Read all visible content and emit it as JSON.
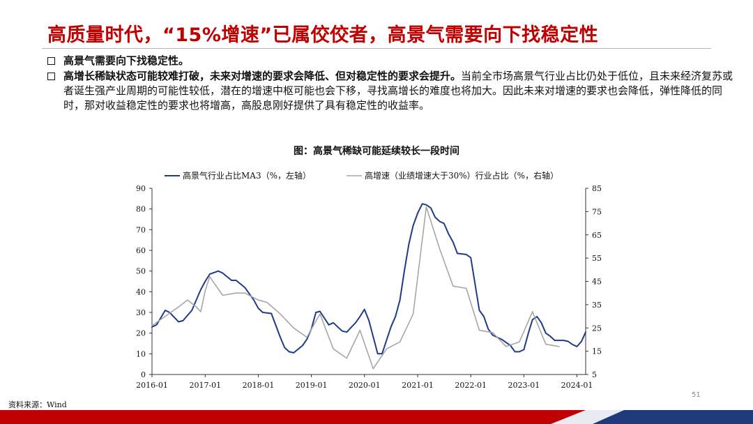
{
  "page": {
    "title": "高质量时代，“15%增速”已属佼佼者，高景气需要向下找稳定性",
    "page_number": "51",
    "source": "资料来源：Wind",
    "figure_title": "图：高景气稀缺可能延续较长一段时间",
    "colors": {
      "title": "#c00000",
      "band_red": "#c00000",
      "band_blue": "#1f3a7a"
    }
  },
  "bullets": [
    {
      "bold": "高景气需要向下找稳定性。",
      "text": ""
    },
    {
      "bold": "高增长稀缺状态可能较难打破，未来对增速的要求会降低、但对稳定性的要求会提升。",
      "text": "当前全市场高景气行业占比仍处于低位，且未来经济复苏或者诞生强产业周期的可能性较低，潜在的增速中枢可能也会下移，寻找高增长的难度也将加大。因此未来对增速的要求也会降低，弹性降低的同时，那对收益稳定性的要求也将增高，高股息刚好提供了具有稳定性的收益率。"
    }
  ],
  "chart_data": {
    "type": "line",
    "title": "图：高景气稀缺可能延续较长一段时间",
    "x_ticks": [
      "2016-01",
      "2017-01",
      "2018-01",
      "2019-01",
      "2020-01",
      "2021-01",
      "2022-01",
      "2023-01",
      "2024-01"
    ],
    "y_left": {
      "range": [
        0,
        90
      ],
      "ticks": [
        0,
        10,
        20,
        30,
        40,
        50,
        60,
        70,
        80,
        90
      ]
    },
    "y_right": {
      "range": [
        5,
        85
      ],
      "ticks": [
        5,
        15,
        25,
        35,
        45,
        55,
        65,
        75,
        85
      ]
    },
    "legend_position": "top",
    "series": [
      {
        "name": "高景气行业占比MA3（%，左轴）",
        "axis": "left",
        "color": "#1f3a8a",
        "points": [
          [
            "2016-01",
            23
          ],
          [
            "2016-02",
            24
          ],
          [
            "2016-04",
            31
          ],
          [
            "2016-05",
            30
          ],
          [
            "2016-07",
            25.5
          ],
          [
            "2016-08",
            26
          ],
          [
            "2016-10",
            31
          ],
          [
            "2016-12",
            41
          ],
          [
            "2017-01",
            45
          ],
          [
            "2017-02",
            48.5
          ],
          [
            "2017-04",
            50
          ],
          [
            "2017-05",
            49
          ],
          [
            "2017-07",
            45.5
          ],
          [
            "2017-08",
            45.5
          ],
          [
            "2017-10",
            42
          ],
          [
            "2017-12",
            36
          ],
          [
            "2018-01",
            32
          ],
          [
            "2018-02",
            30
          ],
          [
            "2018-04",
            29.5
          ],
          [
            "2018-06",
            18
          ],
          [
            "2018-07",
            13
          ],
          [
            "2018-08",
            11
          ],
          [
            "2018-09",
            10.5
          ],
          [
            "2018-11",
            14
          ],
          [
            "2018-12",
            17
          ],
          [
            "2019-01",
            22
          ],
          [
            "2019-02",
            30
          ],
          [
            "2019-03",
            30.5
          ],
          [
            "2019-05",
            24
          ],
          [
            "2019-06",
            25
          ],
          [
            "2019-07",
            23
          ],
          [
            "2019-08",
            21
          ],
          [
            "2019-09",
            20.5
          ],
          [
            "2019-11",
            25
          ],
          [
            "2019-12",
            28
          ],
          [
            "2020-01",
            31.5
          ],
          [
            "2020-02",
            26
          ],
          [
            "2020-04",
            10
          ],
          [
            "2020-05",
            10
          ],
          [
            "2020-07",
            23
          ],
          [
            "2020-08",
            28
          ],
          [
            "2020-09",
            36
          ],
          [
            "2020-10",
            50
          ],
          [
            "2020-11",
            63
          ],
          [
            "2020-12",
            72
          ],
          [
            "2021-01",
            78
          ],
          [
            "2021-02",
            82.5
          ],
          [
            "2021-03",
            82
          ],
          [
            "2021-04",
            80.5
          ],
          [
            "2021-05",
            76
          ],
          [
            "2021-06",
            74
          ],
          [
            "2021-07",
            73
          ],
          [
            "2021-08",
            68
          ],
          [
            "2021-09",
            64
          ],
          [
            "2021-10",
            58.5
          ],
          [
            "2021-12",
            58
          ],
          [
            "2022-01",
            56.5
          ],
          [
            "2022-02",
            43
          ],
          [
            "2022-03",
            31
          ],
          [
            "2022-04",
            28
          ],
          [
            "2022-05",
            22
          ],
          [
            "2022-06",
            19
          ],
          [
            "2022-08",
            17
          ],
          [
            "2022-10",
            14
          ],
          [
            "2022-11",
            11
          ],
          [
            "2022-12",
            11
          ],
          [
            "2023-01",
            12
          ],
          [
            "2023-02",
            20
          ],
          [
            "2023-03",
            26.5
          ],
          [
            "2023-04",
            28
          ],
          [
            "2023-05",
            25
          ],
          [
            "2023-06",
            20
          ],
          [
            "2023-07",
            18.5
          ],
          [
            "2023-08",
            16.5
          ],
          [
            "2023-10",
            16.5
          ],
          [
            "2023-11",
            16
          ],
          [
            "2023-12",
            14.5
          ],
          [
            "2024-01",
            13.5
          ],
          [
            "2024-02",
            16
          ],
          [
            "2024-03",
            20.5
          ]
        ]
      },
      {
        "name": "高增速（业绩增速大于30%）行业占比（%，右轴）",
        "axis": "right",
        "color": "#a6a6a6",
        "points": [
          [
            "2016-01",
            26
          ],
          [
            "2016-04",
            30
          ],
          [
            "2016-07",
            34
          ],
          [
            "2016-09",
            37
          ],
          [
            "2016-11",
            34
          ],
          [
            "2016-12",
            32
          ],
          [
            "2017-01",
            41
          ],
          [
            "2017-02",
            47
          ],
          [
            "2017-05",
            39
          ],
          [
            "2017-08",
            40
          ],
          [
            "2017-10",
            40
          ],
          [
            "2017-12",
            38
          ],
          [
            "2018-01",
            37
          ],
          [
            "2018-03",
            36
          ],
          [
            "2018-06",
            31
          ],
          [
            "2018-09",
            25
          ],
          [
            "2018-12",
            21
          ],
          [
            "2019-03",
            31
          ],
          [
            "2019-06",
            16
          ],
          [
            "2019-09",
            12
          ],
          [
            "2019-12",
            24
          ],
          [
            "2020-03",
            7.5
          ],
          [
            "2020-06",
            16
          ],
          [
            "2020-09",
            19
          ],
          [
            "2020-12",
            31
          ],
          [
            "2021-03",
            77
          ],
          [
            "2021-06",
            59
          ],
          [
            "2021-09",
            43
          ],
          [
            "2021-12",
            42
          ],
          [
            "2022-03",
            24
          ],
          [
            "2022-06",
            23
          ],
          [
            "2022-09",
            17
          ],
          [
            "2022-12",
            19
          ],
          [
            "2023-03",
            32
          ],
          [
            "2023-06",
            18
          ],
          [
            "2023-09",
            17
          ]
        ]
      }
    ]
  }
}
